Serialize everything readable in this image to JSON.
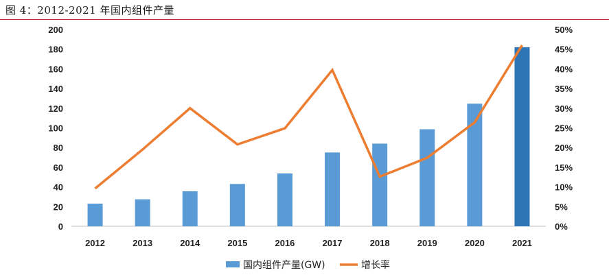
{
  "caption": "图 4：2012-2021 年国内组件产量",
  "chart_data": {
    "type": "bar",
    "categories": [
      "2012",
      "2013",
      "2014",
      "2015",
      "2016",
      "2017",
      "2018",
      "2019",
      "2020",
      "2021"
    ],
    "series": [
      {
        "name": "国内组件产量(GW)",
        "type": "bar",
        "axis": "left",
        "values": [
          23,
          27.4,
          35.6,
          43,
          53.7,
          75,
          84,
          98.6,
          124.6,
          182
        ],
        "color": "#5b9bd5",
        "highlight_color": "#2e75b6",
        "highlight_index": 9
      },
      {
        "name": "增长率",
        "type": "line",
        "axis": "right",
        "values": [
          0.096,
          0.195,
          0.3,
          0.208,
          0.249,
          0.397,
          0.126,
          0.174,
          0.264,
          0.46
        ],
        "color": "#ed7d31"
      }
    ],
    "y_left": {
      "range": [
        0,
        200
      ],
      "ticks": [
        "0",
        "20",
        "40",
        "60",
        "80",
        "100",
        "120",
        "140",
        "160",
        "180",
        "200"
      ]
    },
    "y_right": {
      "range": [
        0,
        0.5
      ],
      "ticks": [
        "0%",
        "5%",
        "10%",
        "15%",
        "20%",
        "25%",
        "30%",
        "35%",
        "40%",
        "45%",
        "50%"
      ]
    },
    "grid": false,
    "legend": "bottom"
  }
}
